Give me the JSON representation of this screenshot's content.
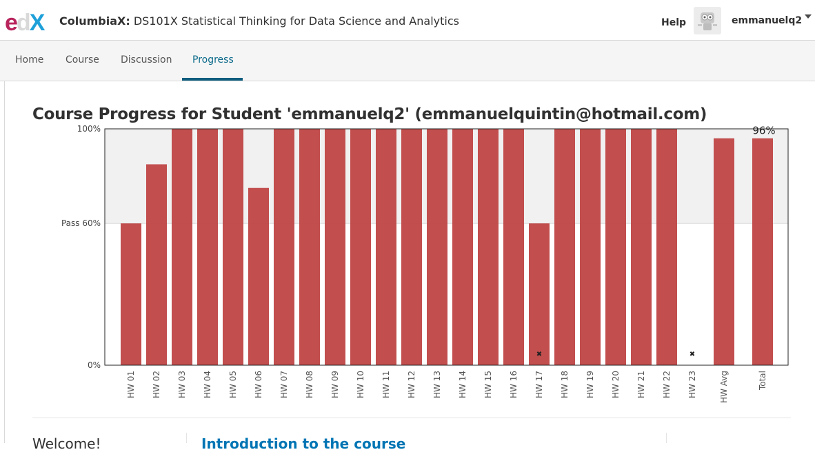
{
  "header": {
    "logo": {
      "e": "e",
      "d": "d",
      "x": "X"
    },
    "course_org": "ColumbiaX:",
    "course_name": " DS101X Statistical Thinking for Data Science and Analytics",
    "help": "Help",
    "username": "emmanuelq2"
  },
  "tabs": [
    {
      "label": "Home",
      "active": false
    },
    {
      "label": "Course",
      "active": false
    },
    {
      "label": "Discussion",
      "active": false
    },
    {
      "label": "Progress",
      "active": true
    }
  ],
  "page_title": "Course Progress for Student 'emmanuelq2' (emmanuelquintin@hotmail.com)",
  "colors": {
    "bar": "#bf4444",
    "pass_band": "#f1f1f1",
    "tab_active": "#0b6a8a"
  },
  "chart_data": {
    "type": "bar",
    "categories": [
      "HW 01",
      "HW 02",
      "HW 03",
      "HW 04",
      "HW 05",
      "HW 06",
      "HW 07",
      "HW 08",
      "HW 09",
      "HW 10",
      "HW 11",
      "HW 12",
      "HW 13",
      "HW 14",
      "HW 15",
      "HW 16",
      "HW 17",
      "HW 18",
      "HW 19",
      "HW 20",
      "HW 21",
      "HW 22",
      "HW 23",
      "HW Avg",
      "Total"
    ],
    "values": [
      60,
      85,
      100,
      100,
      100,
      75,
      100,
      100,
      100,
      100,
      100,
      100,
      100,
      100,
      100,
      100,
      60,
      100,
      100,
      100,
      100,
      100,
      0,
      96,
      96
    ],
    "dropped": [
      "HW 17",
      "HW 23"
    ],
    "drop_marker": "✖",
    "ylim": [
      0,
      100
    ],
    "y_ticks": [
      {
        "value": 100,
        "label": "100%"
      },
      {
        "value": 60,
        "label": "Pass 60%"
      },
      {
        "value": 0,
        "label": "0%"
      }
    ],
    "pass_threshold": 60,
    "total_label": "96%"
  },
  "below": {
    "welcome": "Welcome!",
    "intro_link": "Introduction to the course"
  }
}
